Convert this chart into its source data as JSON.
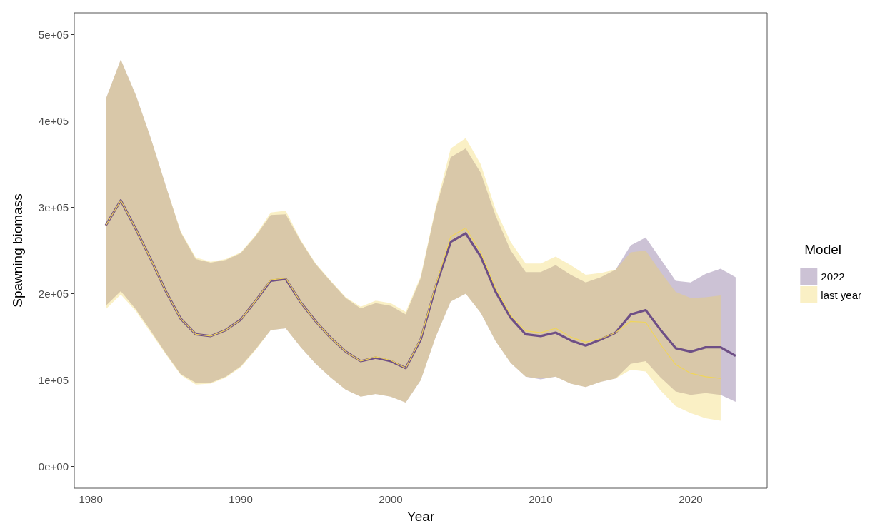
{
  "chart_data": {
    "type": "line",
    "xlabel": "Year",
    "ylabel": "Spawning biomass",
    "legend_title": "Model",
    "legend": "right",
    "xlim": [
      1978.9,
      2025.1
    ],
    "xticks": [
      1980,
      1990,
      2000,
      2010,
      2020
    ],
    "ylim": [
      -25000,
      525000
    ],
    "yticks": [
      {
        "value": 0,
        "label": "0e+00"
      },
      {
        "value": 100000,
        "label": "1e+05"
      },
      {
        "value": 200000,
        "label": "2e+05"
      },
      {
        "value": 300000,
        "label": "3e+05"
      },
      {
        "value": 400000,
        "label": "4e+05"
      },
      {
        "value": 500000,
        "label": "5e+05"
      }
    ],
    "series": [
      {
        "name": "2022",
        "color": "#6e4f86",
        "x": [
          1981,
          1982,
          1983,
          1984,
          1985,
          1986,
          1987,
          1988,
          1989,
          1990,
          1991,
          1992,
          1993,
          1994,
          1995,
          1996,
          1997,
          1998,
          1999,
          2000,
          2001,
          2002,
          2003,
          2004,
          2005,
          2006,
          2007,
          2008,
          2009,
          2010,
          2011,
          2012,
          2013,
          2014,
          2015,
          2016,
          2017,
          2018,
          2019,
          2020,
          2021,
          2022,
          2023
        ],
        "values": [
          279000,
          308000,
          275000,
          240000,
          203000,
          171000,
          153000,
          151000,
          158000,
          170000,
          192000,
          215000,
          217000,
          190000,
          168000,
          149000,
          133000,
          122000,
          126000,
          122000,
          114000,
          147000,
          208000,
          260000,
          270000,
          243000,
          202000,
          172000,
          153000,
          151000,
          155000,
          146000,
          140000,
          147000,
          155000,
          176000,
          181000,
          158000,
          137000,
          133000,
          138000,
          138000,
          128000
        ],
        "lower": [
          186000,
          203000,
          182000,
          157000,
          131000,
          107000,
          97000,
          97000,
          104000,
          116000,
          136000,
          158000,
          160000,
          138000,
          119000,
          103000,
          89000,
          81000,
          84000,
          81000,
          74000,
          100000,
          150000,
          191000,
          200000,
          178000,
          145000,
          120000,
          104000,
          101000,
          104000,
          96000,
          92000,
          98000,
          102000,
          119000,
          122000,
          103000,
          87000,
          83000,
          85000,
          83000,
          75000
        ],
        "upper": [
          425000,
          471000,
          430000,
          380000,
          325000,
          271000,
          240000,
          236000,
          239000,
          247000,
          267000,
          291000,
          292000,
          261000,
          234000,
          214000,
          195000,
          183000,
          189000,
          186000,
          176000,
          218000,
          298000,
          358000,
          368000,
          340000,
          290000,
          250000,
          225000,
          225000,
          233000,
          222000,
          213000,
          219000,
          228000,
          256000,
          265000,
          240000,
          215000,
          213000,
          223000,
          229000,
          219000
        ]
      },
      {
        "name": "last year",
        "color": "#f0d55a",
        "x": [
          1981,
          1982,
          1983,
          1984,
          1985,
          1986,
          1987,
          1988,
          1989,
          1990,
          1991,
          1992,
          1993,
          1994,
          1995,
          1996,
          1997,
          1998,
          1999,
          2000,
          2001,
          2002,
          2003,
          2004,
          2005,
          2006,
          2007,
          2008,
          2009,
          2010,
          2011,
          2012,
          2013,
          2014,
          2015,
          2016,
          2017,
          2018,
          2019,
          2020,
          2021,
          2022
        ],
        "values": [
          279000,
          308000,
          275000,
          240000,
          203000,
          171000,
          153000,
          151000,
          158000,
          170000,
          192000,
          216000,
          218000,
          190000,
          168000,
          149000,
          133000,
          122000,
          127000,
          123000,
          114000,
          148000,
          210000,
          266000,
          276000,
          248000,
          206000,
          175000,
          157000,
          155000,
          160000,
          150000,
          144000,
          148000,
          155000,
          168000,
          167000,
          141000,
          118000,
          108000,
          104000,
          102000
        ],
        "lower": [
          182000,
          199000,
          180000,
          155000,
          130000,
          106000,
          95000,
          96000,
          103000,
          115000,
          135000,
          158000,
          160000,
          138000,
          119000,
          103000,
          89000,
          81000,
          84000,
          81000,
          74000,
          100000,
          150000,
          191000,
          200000,
          178000,
          145000,
          120000,
          104000,
          102000,
          104000,
          96000,
          92000,
          98000,
          102000,
          112000,
          110000,
          88000,
          70000,
          62000,
          56000,
          53000
        ],
        "upper": [
          425000,
          471000,
          430000,
          380000,
          325000,
          272000,
          242000,
          237000,
          240000,
          248000,
          268000,
          294000,
          296000,
          262000,
          235000,
          215000,
          196000,
          185000,
          192000,
          189000,
          179000,
          220000,
          300000,
          368000,
          380000,
          350000,
          297000,
          260000,
          235000,
          235000,
          243000,
          233000,
          222000,
          224000,
          228000,
          248000,
          250000,
          225000,
          202000,
          195000,
          196000,
          198000
        ]
      }
    ]
  }
}
